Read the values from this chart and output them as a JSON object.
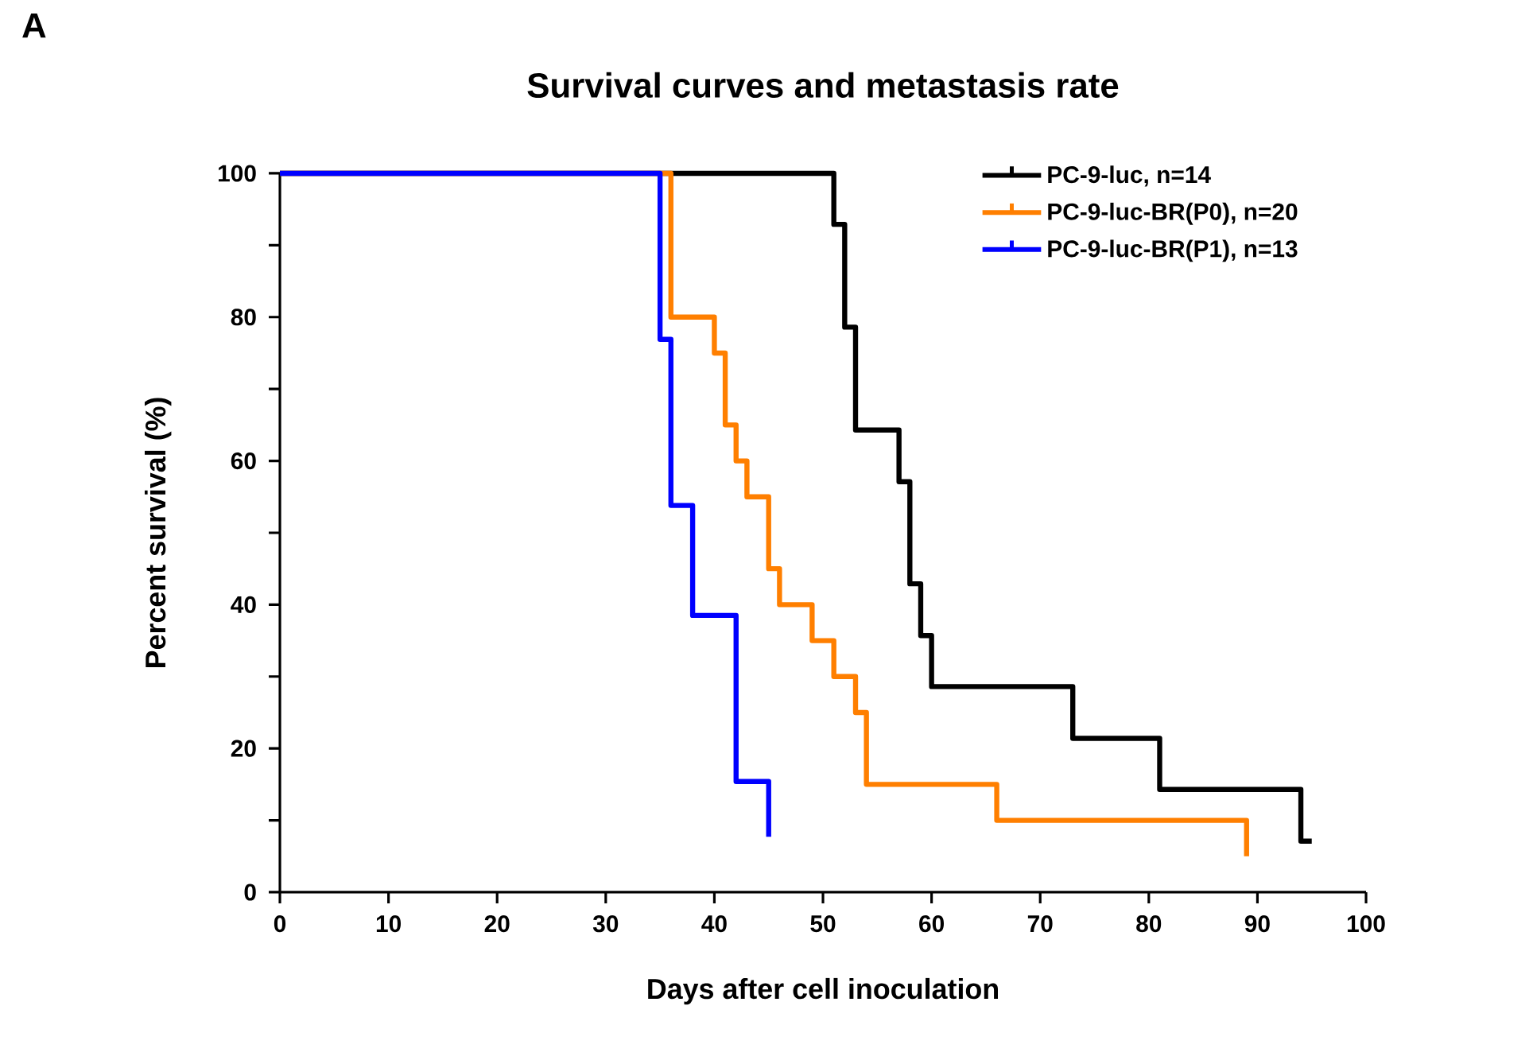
{
  "chart_data": {
    "type": "step",
    "title": "Survival curves and metastasis rate",
    "xlabel": "Days after cell inoculation",
    "ylabel": "Percent survival (%)",
    "annotations": [
      "A"
    ],
    "xlim": [
      0,
      100
    ],
    "xticks": [
      0,
      10,
      20,
      30,
      40,
      50,
      60,
      70,
      80,
      90,
      100
    ],
    "ylim": [
      0,
      100
    ],
    "yticks": [
      0,
      {
        "value": 10,
        "label": null
      },
      20,
      {
        "value": 30,
        "label": null
      },
      40,
      {
        "value": 50,
        "label": null
      },
      60,
      {
        "value": 70,
        "label": null
      },
      80,
      {
        "value": 90,
        "label": null
      },
      100
    ],
    "legend": "top right",
    "grid": false,
    "series": [
      {
        "name": "PC-9-luc, n=14",
        "color": "#000000",
        "x": [
          0,
          51,
          52,
          53,
          57,
          58,
          59,
          60,
          73,
          81,
          94,
          95
        ],
        "values": [
          100,
          92.9,
          78.6,
          64.3,
          57.1,
          42.9,
          35.7,
          28.6,
          21.4,
          14.3,
          7.1,
          7.1
        ]
      },
      {
        "name": "PC-9-luc-BR(P0), n=20",
        "color": "#ff7f00",
        "x": [
          0,
          36,
          40,
          41,
          42,
          43,
          45,
          46,
          49,
          51,
          53,
          54,
          66,
          89
        ],
        "values": [
          100,
          80,
          75,
          65,
          60,
          55,
          45,
          40,
          35,
          30,
          25,
          15,
          10,
          5
        ]
      },
      {
        "name": "PC-9-luc-BR(P1), n=13",
        "color": "#0000ff",
        "x": [
          0,
          35,
          36,
          38,
          42,
          45
        ],
        "values": [
          100,
          76.9,
          53.8,
          38.5,
          15.4,
          7.7
        ]
      }
    ]
  }
}
